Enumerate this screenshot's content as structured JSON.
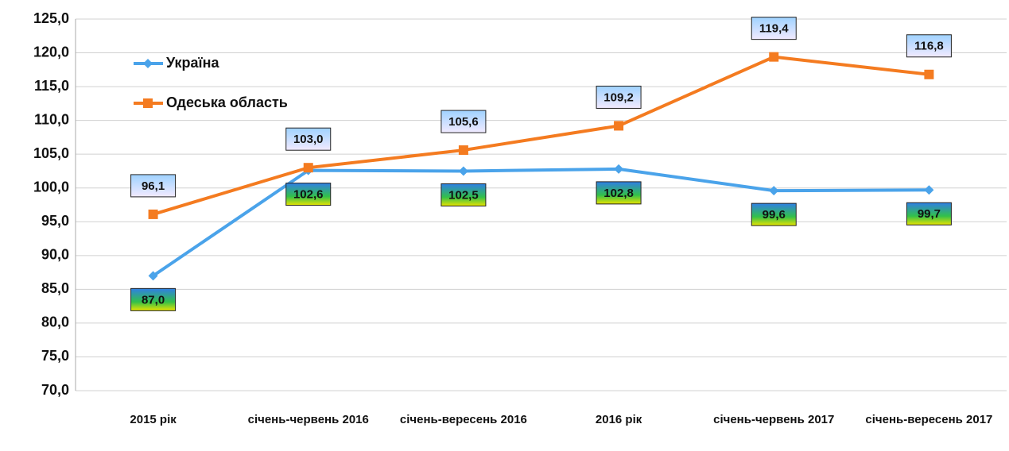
{
  "chart_data": {
    "type": "line",
    "categories": [
      "2015 рік",
      "січень-червень 2016",
      "січень-вересень 2016",
      "2016 рік",
      "січень-червень 2017",
      "січень-вересень 2017"
    ],
    "series": [
      {
        "name": "Україна",
        "color": "#4aa3ea",
        "marker": "diamond",
        "values": [
          87.0,
          102.6,
          102.5,
          102.8,
          99.6,
          99.7
        ],
        "value_labels": [
          "87,0",
          "102,6",
          "102,5",
          "102,8",
          "99,6",
          "99,7"
        ]
      },
      {
        "name": "Одеська область",
        "color": "#f47b20",
        "marker": "square",
        "values": [
          96.1,
          103.0,
          105.6,
          109.2,
          119.4,
          116.8
        ],
        "value_labels": [
          "96,1",
          "103,0",
          "105,6",
          "109,2",
          "119,4",
          "116,8"
        ]
      }
    ],
    "ylim": [
      70,
      125
    ],
    "yticks": [
      {
        "value": 70,
        "label": "70,0"
      },
      {
        "value": 75,
        "label": "75,0"
      },
      {
        "value": 80,
        "label": "80,0"
      },
      {
        "value": 85,
        "label": "85,0"
      },
      {
        "value": 90,
        "label": "90,0"
      },
      {
        "value": 95,
        "label": "95,0"
      },
      {
        "value": 100,
        "label": "100,0"
      },
      {
        "value": 105,
        "label": "105,0"
      },
      {
        "value": 110,
        "label": "110,0"
      },
      {
        "value": 115,
        "label": "115,0"
      },
      {
        "value": 120,
        "label": "120,0"
      },
      {
        "value": 125,
        "label": "125,0"
      }
    ],
    "grid": true,
    "legend": "upper left"
  }
}
